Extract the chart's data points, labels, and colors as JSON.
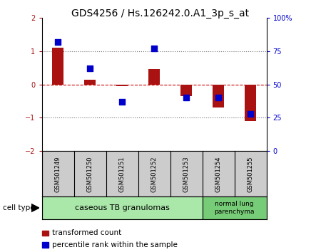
{
  "title": "GDS4256 / Hs.126242.0.A1_3p_s_at",
  "samples": [
    "GSM501249",
    "GSM501250",
    "GSM501251",
    "GSM501252",
    "GSM501253",
    "GSM501254",
    "GSM501255"
  ],
  "transformed_counts": [
    1.1,
    0.15,
    -0.05,
    0.45,
    -0.35,
    -0.7,
    -1.1
  ],
  "percentile_ranks": [
    82,
    62,
    37,
    77,
    40,
    40,
    28
  ],
  "bar_color": "#aa1111",
  "dot_color": "#0000cc",
  "left_ylim": [
    -2,
    2
  ],
  "left_yticks": [
    -2,
    -1,
    0,
    1,
    2
  ],
  "right_yticks": [
    0,
    25,
    50,
    75,
    100
  ],
  "right_yticklabels": [
    "0",
    "25",
    "50",
    "75",
    "100%"
  ],
  "dotted_line_color": "#777777",
  "zero_line_color": "#cc0000",
  "group1_label": "caseous TB granulomas",
  "group1_n": 5,
  "group1_color": "#aae8aa",
  "group2_label": "normal lung\nparenchyma",
  "group2_n": 2,
  "group2_color": "#77cc77",
  "sample_box_color": "#cccccc",
  "cell_type_label": "cell type",
  "legend_items": [
    {
      "color": "#aa1111",
      "label": "transformed count"
    },
    {
      "color": "#0000cc",
      "label": "percentile rank within the sample"
    }
  ],
  "background_color": "#ffffff",
  "bar_width": 0.35,
  "dot_size": 30,
  "title_fontsize": 10,
  "tick_fontsize": 7,
  "sample_fontsize": 6
}
